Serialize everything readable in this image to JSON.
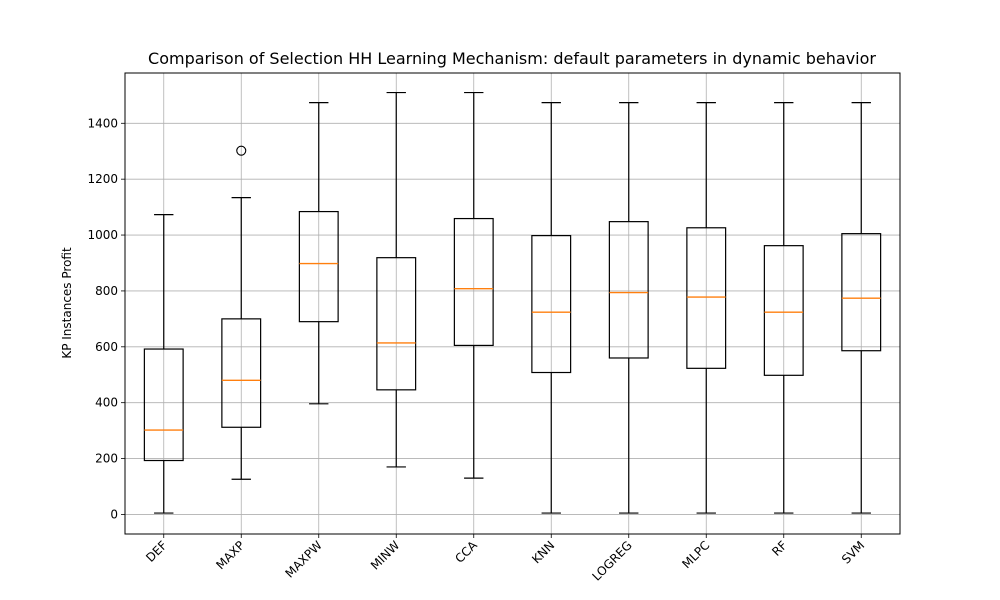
{
  "chart_data": {
    "type": "boxplot",
    "title": "Comparison of Selection HH Learning Mechanism: default parameters in dynamic behavior",
    "xlabel": "",
    "ylabel": "KP Instances Profit",
    "ylim": [
      -70,
      1580
    ],
    "yticks": [
      0,
      200,
      400,
      600,
      800,
      1000,
      1200,
      1400
    ],
    "grid": true,
    "colors": {
      "box": "#000000",
      "median": "#ff7f0e",
      "grid": "#b0b0b0"
    },
    "categories": [
      "DEF",
      "MAXP",
      "MAXPW",
      "MINW",
      "CCA",
      "KNN",
      "LOGREG",
      "MLPC",
      "RF",
      "SVM"
    ],
    "boxes": [
      {
        "label": "DEF",
        "whisker_low": 5,
        "q1": 193,
        "median": 302,
        "q3": 592,
        "whisker_high": 1073,
        "outliers": []
      },
      {
        "label": "MAXP",
        "whisker_low": 126,
        "q1": 312,
        "median": 480,
        "q3": 700,
        "whisker_high": 1134,
        "outliers": [
          1302
        ]
      },
      {
        "label": "MAXPW",
        "whisker_low": 396,
        "q1": 690,
        "median": 898,
        "q3": 1084,
        "whisker_high": 1474,
        "outliers": []
      },
      {
        "label": "MINW",
        "whisker_low": 170,
        "q1": 446,
        "median": 614,
        "q3": 919,
        "whisker_high": 1510,
        "outliers": []
      },
      {
        "label": "CCA",
        "whisker_low": 130,
        "q1": 605,
        "median": 808,
        "q3": 1059,
        "whisker_high": 1510,
        "outliers": []
      },
      {
        "label": "KNN",
        "whisker_low": 5,
        "q1": 508,
        "median": 724,
        "q3": 998,
        "whisker_high": 1474,
        "outliers": []
      },
      {
        "label": "LOGREG",
        "whisker_low": 5,
        "q1": 560,
        "median": 794,
        "q3": 1048,
        "whisker_high": 1474,
        "outliers": []
      },
      {
        "label": "MLPC",
        "whisker_low": 5,
        "q1": 523,
        "median": 778,
        "q3": 1026,
        "whisker_high": 1474,
        "outliers": []
      },
      {
        "label": "RF",
        "whisker_low": 5,
        "q1": 498,
        "median": 724,
        "q3": 962,
        "whisker_high": 1474,
        "outliers": []
      },
      {
        "label": "SVM",
        "whisker_low": 5,
        "q1": 586,
        "median": 774,
        "q3": 1005,
        "whisker_high": 1474,
        "outliers": []
      }
    ]
  }
}
